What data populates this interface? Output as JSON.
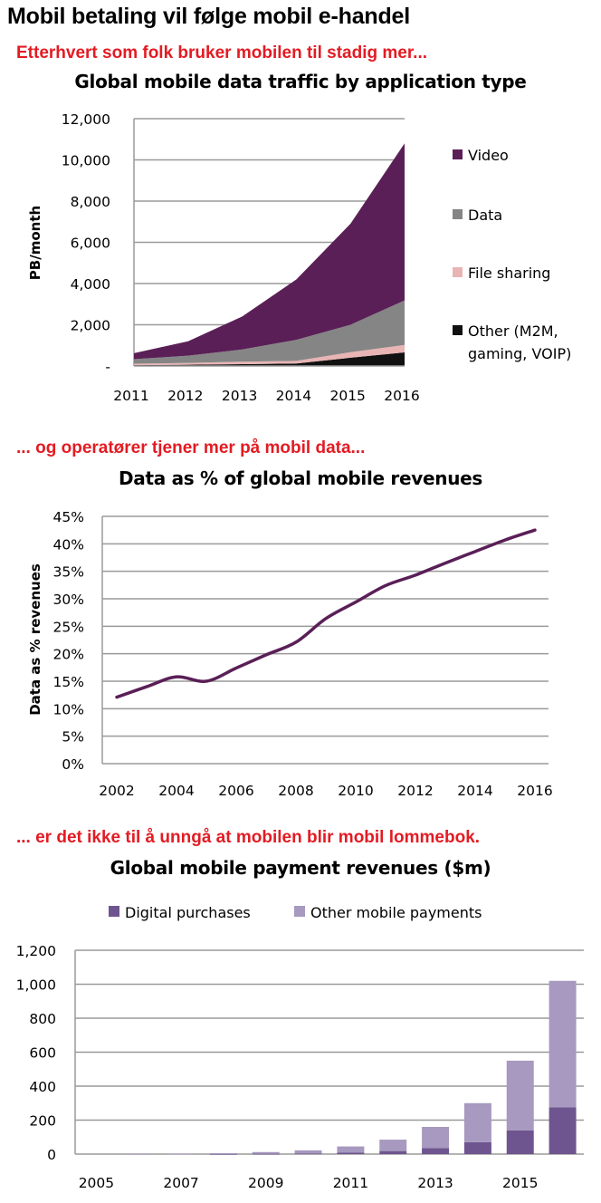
{
  "header": {
    "title": "Mobil betaling vil følge mobil e-handel",
    "caption1": "Etterhvert som folk bruker mobilen til stadig mer...",
    "caption2": "... og operatører tjener mer på mobil data...",
    "caption3": "... er det ikke til å unngå at mobilen blir mobil lommebok."
  },
  "chart_data": [
    {
      "type": "area",
      "stacked": true,
      "title": "Global mobile data traffic by application type",
      "xlabel": "",
      "ylabel": "PB/month",
      "x": [
        "2011",
        "2012",
        "2013",
        "2014",
        "2015",
        "2016"
      ],
      "ylim": [
        0,
        12000
      ],
      "yticks": [
        "-",
        "2,000",
        "4,000",
        "6,000",
        "8,000",
        "10,000",
        "12,000"
      ],
      "grid": true,
      "legend_position": "right",
      "series": [
        {
          "name": "Other (M2M, gaming, VOIP)",
          "color": "#111111",
          "values": [
            40,
            60,
            90,
            120,
            400,
            660
          ]
        },
        {
          "name": "File sharing",
          "color": "#e8b4b4",
          "values": [
            70,
            90,
            120,
            130,
            270,
            360
          ]
        },
        {
          "name": "Data",
          "color": "#858585",
          "values": [
            220,
            350,
            590,
            1020,
            1330,
            2160
          ]
        },
        {
          "name": "Video",
          "color": "#5a1f57",
          "values": [
            290,
            700,
            1600,
            2930,
            4900,
            7620
          ]
        }
      ],
      "stacked_totals": [
        620,
        1200,
        2400,
        4200,
        6900,
        10800
      ]
    },
    {
      "type": "line",
      "title": "Data as % of global mobile revenues",
      "xlabel": "",
      "ylabel": "Data as % revenues",
      "x": [
        2002,
        2003,
        2004,
        2005,
        2006,
        2007,
        2008,
        2009,
        2010,
        2011,
        2012,
        2013,
        2014,
        2015,
        2016
      ],
      "xticks": [
        "2002",
        "2004",
        "2006",
        "2008",
        "2010",
        "2012",
        "2014",
        "2016"
      ],
      "ylim": [
        0,
        45
      ],
      "yticks": [
        "0%",
        "5%",
        "10%",
        "15%",
        "20%",
        "25%",
        "30%",
        "35%",
        "40%",
        "45%"
      ],
      "grid": true,
      "series": [
        {
          "name": "Data as % revenues",
          "color": "#5a1f57",
          "values": [
            12.1,
            14.0,
            15.8,
            15.0,
            17.4,
            19.8,
            22.1,
            26.4,
            29.4,
            32.4,
            34.3,
            36.5,
            38.6,
            40.7,
            42.5
          ]
        }
      ]
    },
    {
      "type": "bar",
      "stacked": true,
      "title": "Global mobile payment revenues ($m)",
      "xlabel": "",
      "ylabel": "",
      "categories": [
        "2005",
        "2006",
        "2007",
        "2008",
        "2009",
        "2010",
        "2011",
        "2012",
        "2013",
        "2014",
        "2015",
        "2016"
      ],
      "xticks": [
        "2005",
        "2007",
        "2009",
        "2011",
        "2013",
        "2015"
      ],
      "ylim": [
        0,
        1200
      ],
      "yticks": [
        "0",
        "200",
        "400",
        "600",
        "800",
        "1,000",
        "1,200"
      ],
      "grid": true,
      "legend_position": "top",
      "series": [
        {
          "name": "Digital purchases",
          "color": "#6f558f",
          "values": [
            0,
            0,
            0,
            1,
            2,
            4,
            8,
            18,
            35,
            70,
            140,
            275
          ]
        },
        {
          "name": "Other mobile payments",
          "color": "#a799bf",
          "values": [
            0,
            1,
            2,
            4,
            10,
            18,
            37,
            67,
            125,
            230,
            410,
            745
          ]
        }
      ]
    }
  ]
}
